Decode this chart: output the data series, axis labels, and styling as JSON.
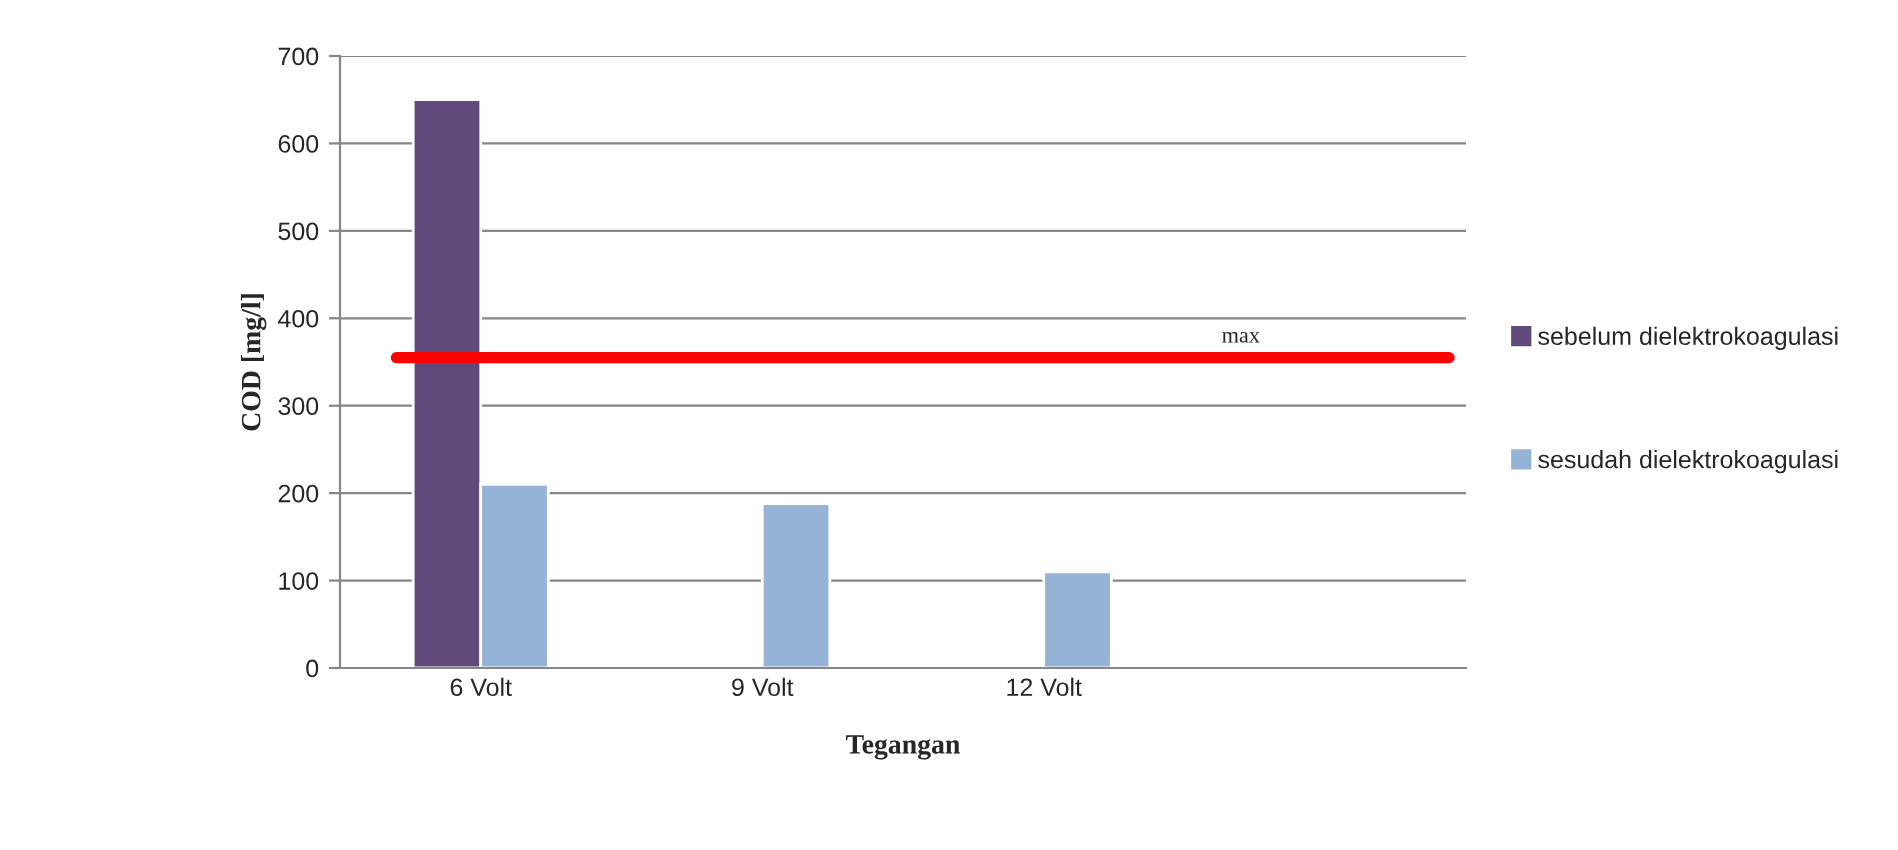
{
  "chart_data": {
    "type": "bar",
    "xlabel": "Tegangan",
    "ylabel": "COD [mg/l]",
    "categories": [
      "6 Volt",
      "9 Volt",
      "12 Volt",
      null
    ],
    "series": [
      {
        "name": "sebelum dielektrokoagulasi",
        "color": "#604a7b",
        "values": [
          650,
          null,
          null,
          null
        ]
      },
      {
        "name": "sesudah dielektrokoagulasi",
        "color": "#95b3d7",
        "values": [
          210,
          188,
          110,
          null
        ]
      }
    ],
    "ylim": [
      0,
      700
    ],
    "yticks": [
      0,
      100,
      200,
      300,
      400,
      500,
      600,
      700
    ],
    "grid": "y",
    "legend": "right",
    "ref_lines": [
      {
        "axis": "y",
        "value": 355,
        "label": "max",
        "color": "#ff0000"
      }
    ]
  }
}
